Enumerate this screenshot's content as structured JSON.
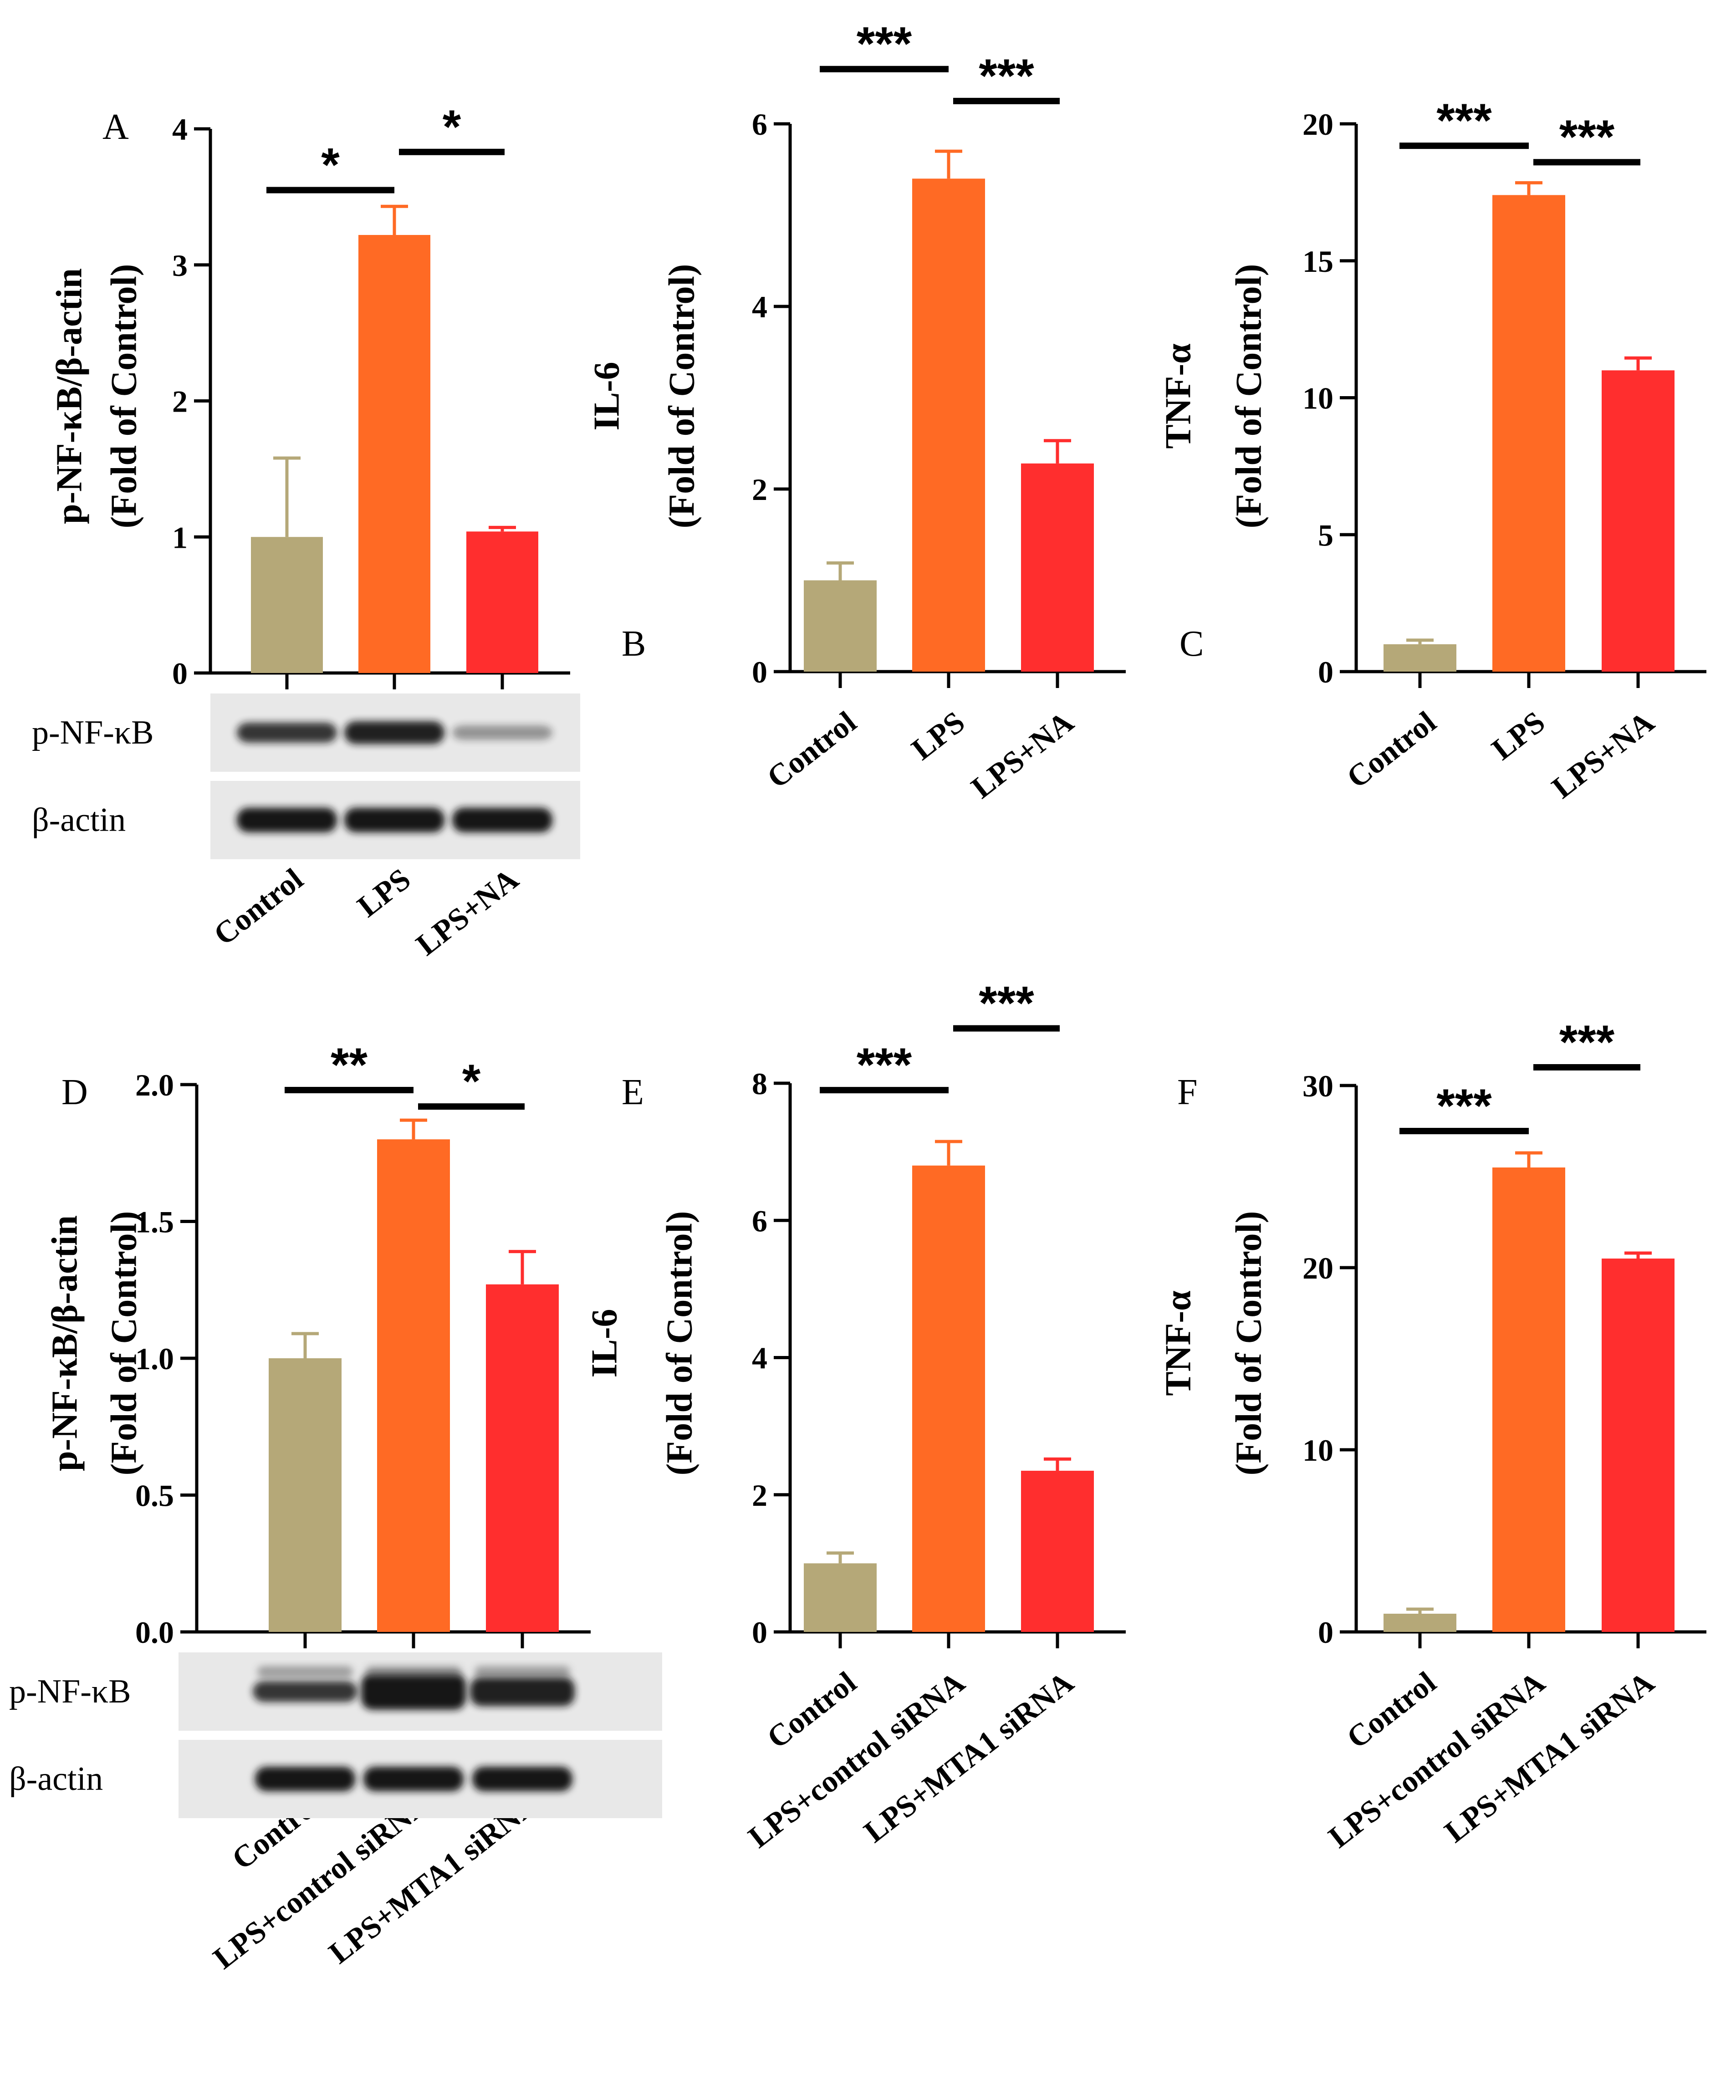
{
  "colors": {
    "control": "#b5a878",
    "lps": "#ff6a24",
    "treat": "#ff2e2e"
  },
  "chart_data": [
    {
      "panel": "A",
      "type": "bar",
      "ylabel": [
        "p-NF-κB/β-actin",
        "(Fold of Control)"
      ],
      "categories": [
        "Control",
        "LPS",
        "LPS+NA"
      ],
      "values": [
        1.0,
        3.22,
        1.04
      ],
      "errors": [
        0.58,
        0.21,
        0.03
      ],
      "ylim": [
        0,
        4
      ],
      "yticks": [
        "0",
        "1",
        "2",
        "3",
        "4"
      ],
      "significance": [
        {
          "from": 0,
          "to": 1,
          "label": "*",
          "y": 3.55
        },
        {
          "from": 1,
          "to": 2,
          "label": "*",
          "y": 3.83
        }
      ],
      "blot_labels": [
        "p-NF-κB",
        "β-actin"
      ]
    },
    {
      "panel": "B",
      "type": "bar",
      "ylabel": [
        "IL-6",
        "(Fold of Control)"
      ],
      "categories": [
        "Control",
        "LPS",
        "LPS+NA"
      ],
      "values": [
        1.0,
        5.4,
        2.28
      ],
      "errors": [
        0.19,
        0.3,
        0.25
      ],
      "ylim": [
        0,
        6
      ],
      "yticks": [
        "0",
        "2",
        "4",
        "6"
      ],
      "significance": [
        {
          "from": 0,
          "to": 1,
          "label": "***",
          "y": 6.6
        },
        {
          "from": 1,
          "to": 2,
          "label": "***",
          "y": 6.25
        }
      ]
    },
    {
      "panel": "C",
      "type": "bar",
      "ylabel": [
        "TNF-α",
        "(Fold of Control)"
      ],
      "categories": [
        "Control",
        "LPS",
        "LPS+NA"
      ],
      "values": [
        1.0,
        17.4,
        11.0
      ],
      "errors": [
        0.15,
        0.45,
        0.45
      ],
      "ylim": [
        0,
        20
      ],
      "yticks": [
        "0",
        "5",
        "10",
        "15",
        "20"
      ],
      "significance": [
        {
          "from": 0,
          "to": 1,
          "label": "***",
          "y": 19.2
        },
        {
          "from": 1,
          "to": 2,
          "label": "***",
          "y": 18.6
        }
      ]
    },
    {
      "panel": "D",
      "type": "bar",
      "ylabel": [
        "p-NF-κB/β-actin",
        "(Fold of Control)"
      ],
      "categories": [
        "Control",
        "LPS+control siRNA",
        "LPS+MTA1 siRNA"
      ],
      "values": [
        1.0,
        1.8,
        1.27
      ],
      "errors": [
        0.09,
        0.07,
        0.12
      ],
      "ylim": [
        0,
        2.0
      ],
      "yticks": [
        "0.0",
        "0.5",
        "1.0",
        "1.5",
        "2.0"
      ],
      "significance": [
        {
          "from": 0,
          "to": 1,
          "label": "**",
          "y": 1.98
        },
        {
          "from": 1,
          "to": 2,
          "label": "*",
          "y": 1.92
        }
      ],
      "blot_labels": [
        "p-NF-κB",
        "β-actin"
      ]
    },
    {
      "panel": "E",
      "type": "bar",
      "ylabel": [
        "IL-6",
        "(Fold of Control)"
      ],
      "categories": [
        "Control",
        "LPS+control siRNA",
        "LPS+MTA1 siRNA"
      ],
      "values": [
        1.0,
        6.8,
        2.35
      ],
      "errors": [
        0.15,
        0.35,
        0.17
      ],
      "ylim": [
        0,
        8
      ],
      "yticks": [
        "0",
        "2",
        "4",
        "6",
        "8"
      ],
      "significance": [
        {
          "from": 0,
          "to": 1,
          "label": "***",
          "y": 7.9
        },
        {
          "from": 1,
          "to": 2,
          "label": "***",
          "y": 8.8
        }
      ]
    },
    {
      "panel": "F",
      "type": "bar",
      "ylabel": [
        "TNF-α",
        "(Fold of Control)"
      ],
      "categories": [
        "Control",
        "LPS+control siRNA",
        "LPS+MTA1 siRNA"
      ],
      "values": [
        1.0,
        25.5,
        20.5
      ],
      "errors": [
        0.25,
        0.8,
        0.3
      ],
      "ylim": [
        0,
        30
      ],
      "yticks": [
        "0",
        "10",
        "20",
        "30"
      ],
      "significance": [
        {
          "from": 0,
          "to": 1,
          "label": "***",
          "y": 27.5
        },
        {
          "from": 1,
          "to": 2,
          "label": "***",
          "y": 31.0
        }
      ]
    }
  ]
}
